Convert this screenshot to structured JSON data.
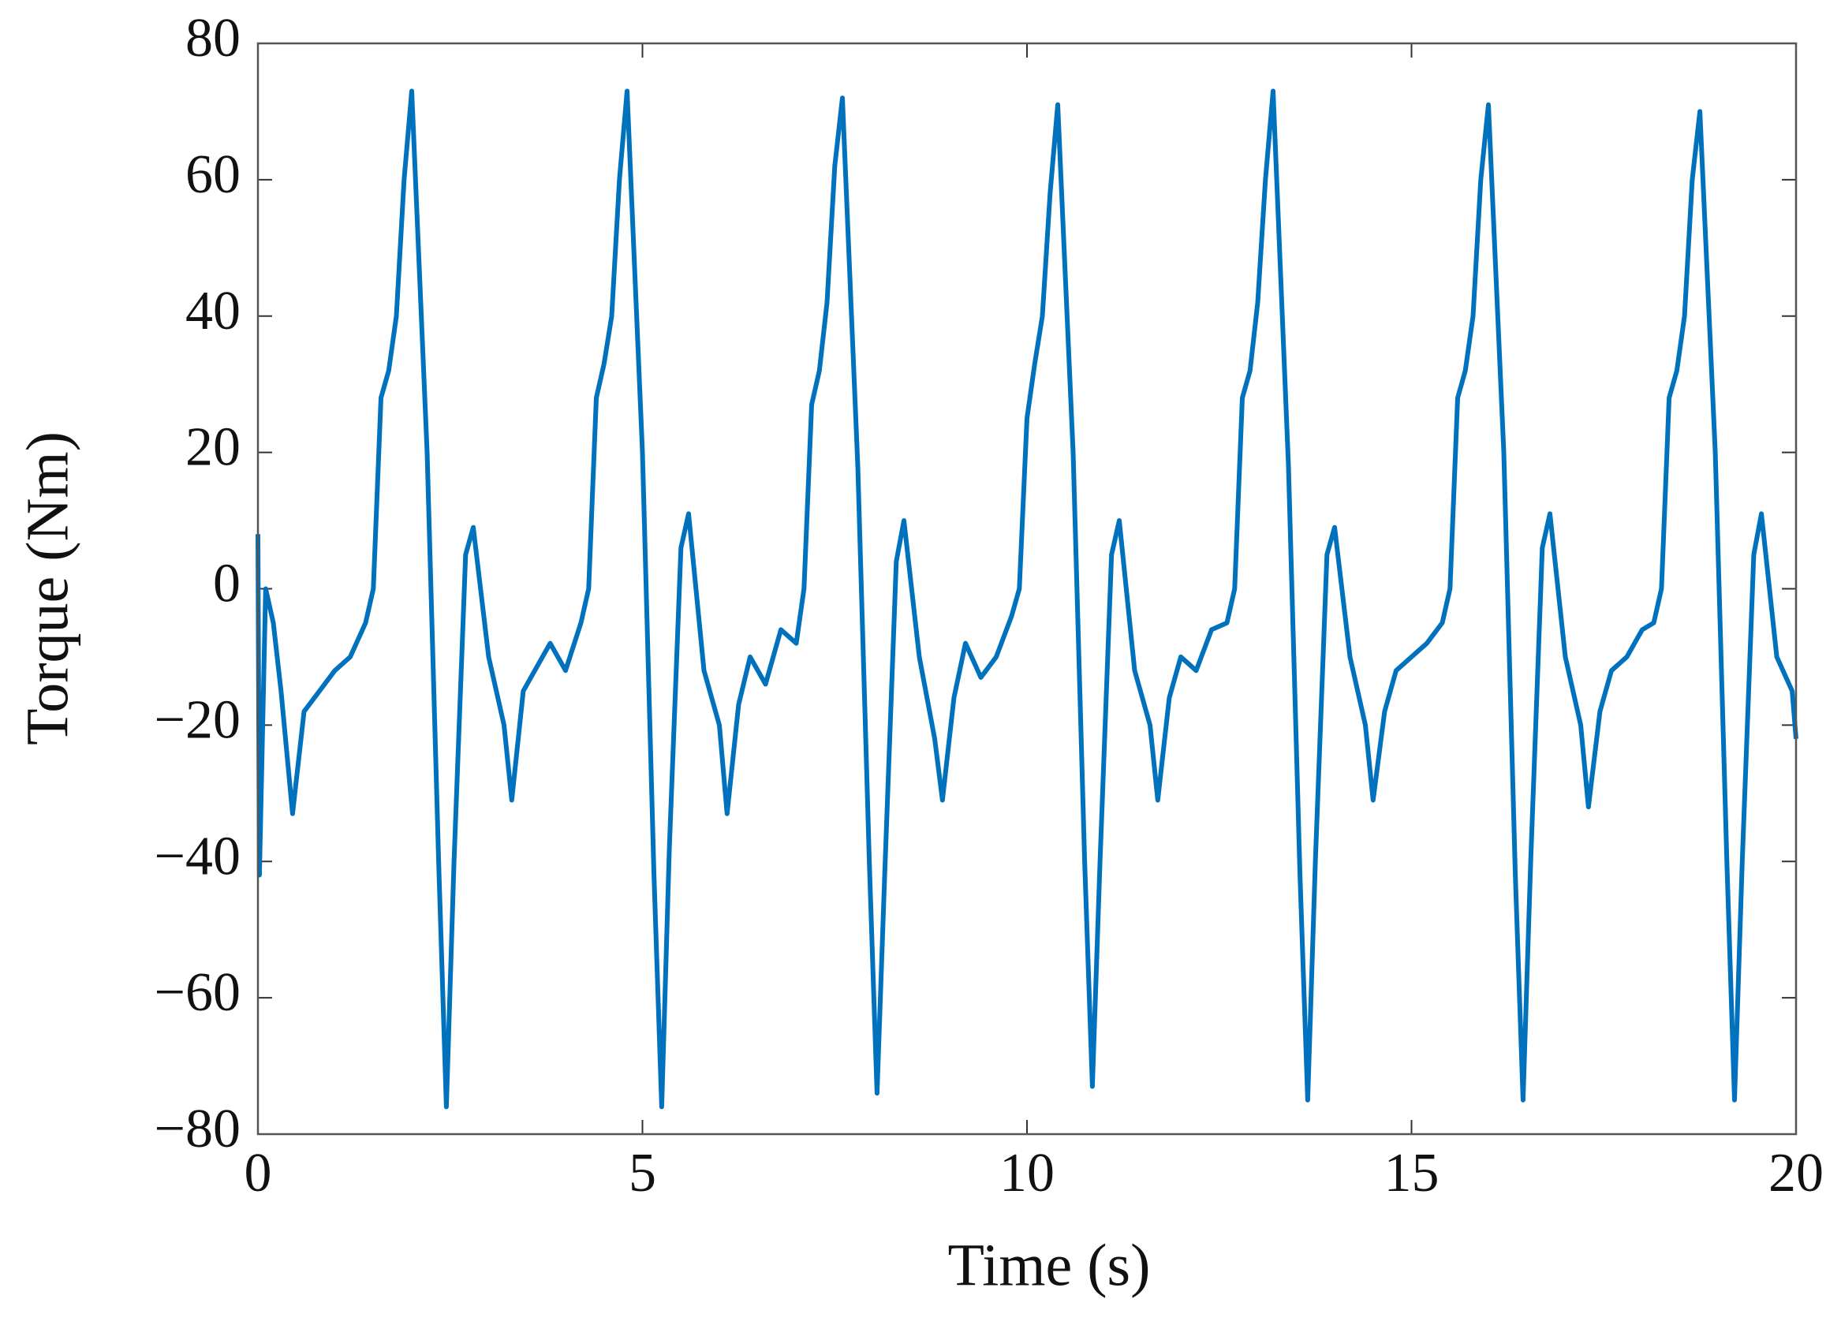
{
  "chart_data": {
    "type": "line",
    "x_label": "Time (s)",
    "y_label": "Torque (Nm)",
    "xlim": [
      0,
      20
    ],
    "xticks": [
      0,
      5,
      10,
      15,
      20
    ],
    "ylim": [
      -80,
      80
    ],
    "yticks": [
      {
        "value": -80,
        "label": "−80"
      },
      {
        "value": -60,
        "label": "−60"
      },
      {
        "value": -40,
        "label": "−40"
      },
      {
        "value": -20,
        "label": "−20"
      },
      0,
      20,
      40,
      60,
      80
    ],
    "grid": false,
    "box": true,
    "series": [
      {
        "color": "#0072bd",
        "x": [
          0,
          0.02,
          0.1,
          0.2,
          0.3,
          0.45,
          0.6,
          0.8,
          1.0,
          1.2,
          1.4,
          1.5,
          1.6,
          1.7,
          1.8,
          1.9,
          2.0,
          2.2,
          2.35,
          2.45,
          2.55,
          2.7,
          2.8,
          3.0,
          3.2,
          3.3,
          3.45,
          3.6,
          3.8,
          4.0,
          4.2,
          4.3,
          4.4,
          4.5,
          4.6,
          4.7,
          4.8,
          5.0,
          5.15,
          5.25,
          5.35,
          5.5,
          5.6,
          5.8,
          6.0,
          6.1,
          6.25,
          6.4,
          6.6,
          6.8,
          7.0,
          7.1,
          7.2,
          7.3,
          7.4,
          7.5,
          7.6,
          7.8,
          7.95,
          8.05,
          8.15,
          8.3,
          8.4,
          8.6,
          8.8,
          8.9,
          9.05,
          9.2,
          9.4,
          9.6,
          9.8,
          9.9,
          10.0,
          10.1,
          10.2,
          10.3,
          10.4,
          10.6,
          10.75,
          10.85,
          10.95,
          11.1,
          11.2,
          11.4,
          11.6,
          11.7,
          11.85,
          12.0,
          12.2,
          12.4,
          12.6,
          12.7,
          12.8,
          12.9,
          13.0,
          13.1,
          13.2,
          13.4,
          13.55,
          13.65,
          13.75,
          13.9,
          14.0,
          14.2,
          14.4,
          14.5,
          14.65,
          14.8,
          15.0,
          15.2,
          15.4,
          15.5,
          15.6,
          15.7,
          15.8,
          15.9,
          16.0,
          16.2,
          16.35,
          16.45,
          16.55,
          16.7,
          16.8,
          17.0,
          17.2,
          17.3,
          17.45,
          17.6,
          17.8,
          18.0,
          18.15,
          18.25,
          18.35,
          18.45,
          18.55,
          18.65,
          18.75,
          18.95,
          19.1,
          19.2,
          19.3,
          19.45,
          19.55,
          19.75,
          19.95,
          20
        ],
        "values": [
          8,
          -42,
          0,
          -5,
          -15,
          -33,
          -18,
          -15,
          -12,
          -10,
          -5,
          0,
          28,
          32,
          40,
          60,
          73,
          20,
          -40,
          -76,
          -40,
          5,
          9,
          -10,
          -20,
          -31,
          -15,
          -12,
          -8,
          -12,
          -5,
          0,
          28,
          33,
          40,
          60,
          73,
          20,
          -42,
          -76,
          -38,
          6,
          11,
          -12,
          -20,
          -33,
          -17,
          -10,
          -14,
          -6,
          -8,
          0,
          27,
          32,
          42,
          62,
          72,
          18,
          -40,
          -74,
          -42,
          4,
          10,
          -10,
          -22,
          -31,
          -16,
          -8,
          -13,
          -10,
          -4,
          0,
          25,
          33,
          40,
          58,
          71,
          20,
          -40,
          -73,
          -40,
          5,
          10,
          -12,
          -20,
          -31,
          -16,
          -10,
          -12,
          -6,
          -5,
          0,
          28,
          32,
          42,
          60,
          73,
          18,
          -42,
          -75,
          -40,
          5,
          9,
          -10,
          -20,
          -31,
          -18,
          -12,
          -10,
          -8,
          -5,
          0,
          28,
          32,
          40,
          60,
          71,
          20,
          -42,
          -75,
          -40,
          6,
          11,
          -10,
          -20,
          -32,
          -18,
          -12,
          -10,
          -6,
          -5,
          0,
          28,
          32,
          40,
          60,
          70,
          20,
          -40,
          -75,
          -40,
          5,
          11,
          -10,
          -15,
          -22
        ]
      }
    ]
  }
}
